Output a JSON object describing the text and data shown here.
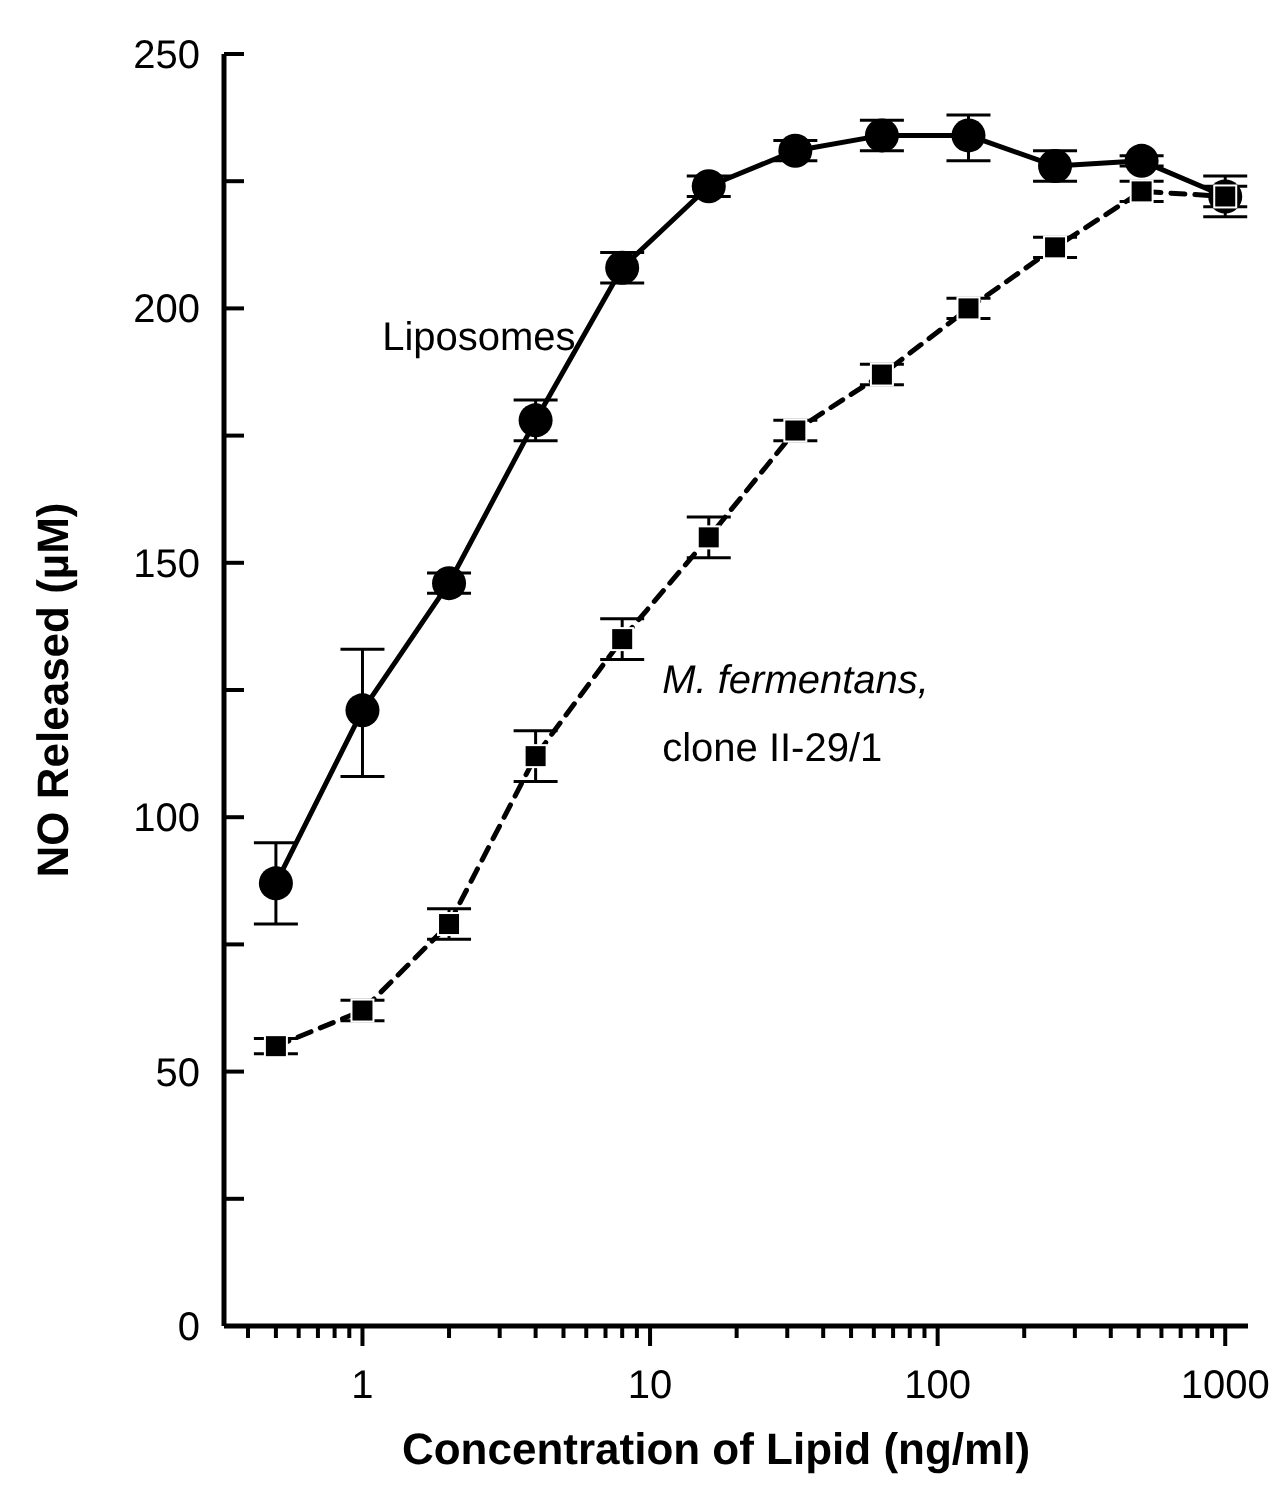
{
  "chart_data": {
    "type": "line",
    "xlabel": "Concentration of Lipid (ng/ml)",
    "ylabel": "NO Released (µM)",
    "log": "x",
    "x": [
      0.5,
      1,
      2,
      4,
      8,
      16,
      32,
      64,
      128,
      256,
      512,
      1000
    ],
    "xlim": [
      0.33,
      1200
    ],
    "xticks": [
      {
        "value": 0.4,
        "label": null
      },
      {
        "value": 0.5,
        "label": null
      },
      {
        "value": 0.6,
        "label": null
      },
      {
        "value": 0.7,
        "label": null
      },
      {
        "value": 0.8,
        "label": null
      },
      {
        "value": 0.9,
        "label": null
      },
      1,
      {
        "value": 2,
        "label": null
      },
      {
        "value": 3,
        "label": null
      },
      {
        "value": 4,
        "label": null
      },
      {
        "value": 5,
        "label": null
      },
      {
        "value": 6,
        "label": null
      },
      {
        "value": 7,
        "label": null
      },
      {
        "value": 8,
        "label": null
      },
      {
        "value": 9,
        "label": null
      },
      10,
      {
        "value": 20,
        "label": null
      },
      {
        "value": 30,
        "label": null
      },
      {
        "value": 40,
        "label": null
      },
      {
        "value": 50,
        "label": null
      },
      {
        "value": 60,
        "label": null
      },
      {
        "value": 70,
        "label": null
      },
      {
        "value": 80,
        "label": null
      },
      {
        "value": 90,
        "label": null
      },
      100,
      {
        "value": 200,
        "label": null
      },
      {
        "value": 300,
        "label": null
      },
      {
        "value": 400,
        "label": null
      },
      {
        "value": 500,
        "label": null
      },
      {
        "value": 600,
        "label": null
      },
      {
        "value": 700,
        "label": null
      },
      {
        "value": 800,
        "label": null
      },
      {
        "value": 900,
        "label": null
      },
      1000
    ],
    "ylim": [
      0,
      250
    ],
    "yticks": [
      0,
      {
        "value": 25,
        "label": null
      },
      50,
      {
        "value": 75,
        "label": null
      },
      100,
      {
        "value": 125,
        "label": null
      },
      150,
      {
        "value": 175,
        "label": null
      },
      200,
      {
        "value": 225,
        "label": null
      },
      250
    ],
    "grid": false,
    "series": [
      {
        "name": "Liposomes",
        "color": "#000000",
        "marker": "circle",
        "line_style": "solid",
        "values": [
          87,
          121,
          146,
          178,
          208,
          224,
          231,
          234,
          234,
          228,
          229,
          222
        ],
        "errors": [
          [
            79,
            95
          ],
          [
            108,
            133
          ],
          2,
          4,
          3,
          2,
          2,
          3,
          [
            229,
            238
          ],
          3,
          1,
          4
        ]
      },
      {
        "name": "M. fermentans, clone II-29/1",
        "color": "#000000",
        "marker": "square",
        "line_style": "dashed",
        "values": [
          55,
          62,
          79,
          112,
          135,
          155,
          176,
          187,
          200,
          212,
          223,
          222
        ],
        "errors": [
          1.5,
          2,
          3,
          5,
          4,
          4,
          2,
          2,
          2,
          2,
          2,
          2
        ]
      }
    ]
  }
}
